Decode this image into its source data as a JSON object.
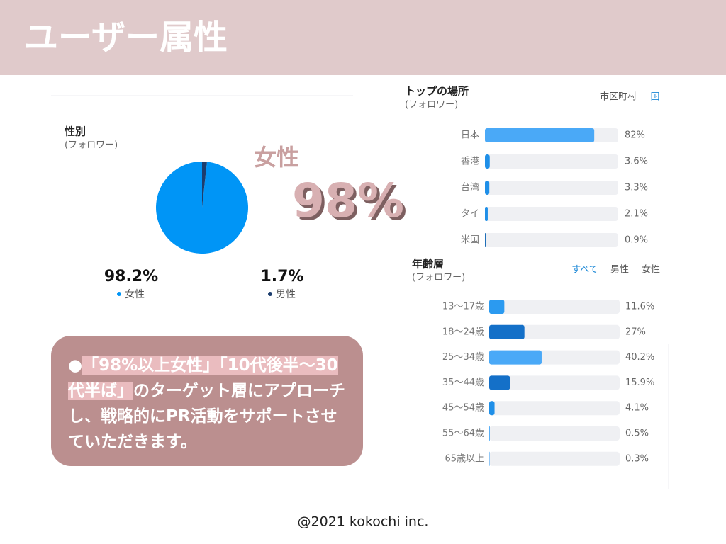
{
  "header": {
    "title": "ユーザー属性"
  },
  "headline": {
    "label": "女性",
    "value": "98%"
  },
  "chart_data": [
    {
      "type": "pie",
      "title": "性別",
      "subtitle": "(フォロワー)",
      "categories": [
        "女性",
        "男性"
      ],
      "values": [
        98.2,
        1.7
      ],
      "value_labels": [
        "98.2%",
        "1.7%"
      ],
      "colors": [
        "#0095f6",
        "#1c3d6e"
      ]
    },
    {
      "type": "bar",
      "title": "トップの場所",
      "subtitle": "(フォロワー)",
      "tabs": [
        "市区町村",
        "国"
      ],
      "categories": [
        "日本",
        "香港",
        "台湾",
        "タイ",
        "米国"
      ],
      "values": [
        82,
        3.6,
        3.3,
        2.1,
        0.9
      ],
      "value_labels": [
        "82%",
        "3.6%",
        "3.3%",
        "2.1%",
        "0.9%"
      ],
      "colors": [
        "#4aa9f7",
        "#1f8fe8",
        "#1f8fe8",
        "#1f8fe8",
        "#1f6fb8"
      ],
      "xlim": [
        0,
        100
      ]
    },
    {
      "type": "bar",
      "title": "年齢層",
      "subtitle": "(フォロワー)",
      "tabs": [
        "すべて",
        "男性",
        "女性"
      ],
      "categories": [
        "13〜17歳",
        "18〜24歳",
        "25〜34歳",
        "35〜44歳",
        "45〜54歳",
        "55〜64歳",
        "65歳以上"
      ],
      "values": [
        11.6,
        27,
        40.2,
        15.9,
        4.1,
        0.5,
        0.3
      ],
      "value_labels": [
        "11.6%",
        "27%",
        "40.2%",
        "15.9%",
        "4.1%",
        "0.5%",
        "0.3%"
      ],
      "colors": [
        "#2b9af0",
        "#1470c8",
        "#4aa9f7",
        "#1470c8",
        "#1f8fe8",
        "#4aa9f7",
        "#4aa9f7"
      ],
      "xlim": [
        0,
        100
      ]
    }
  ],
  "callout": {
    "segments": [
      "●",
      "「98%以上女性」「10代後半〜30代半ば」",
      "のターゲット層にアプローチし、戦略的にPR活動をサポートさせていただきます。"
    ]
  },
  "footer": {
    "text": "@2021 kokochi inc."
  }
}
